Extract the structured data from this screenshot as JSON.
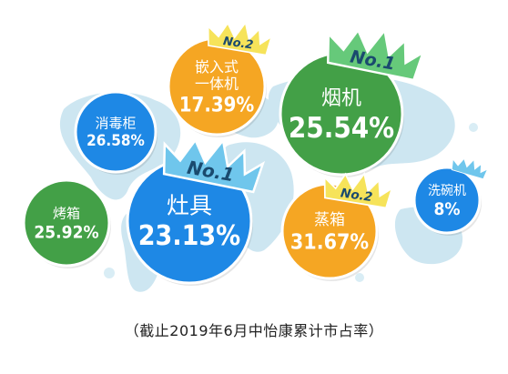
{
  "chart_data": {
    "type": "bubble",
    "title": "",
    "items": [
      {
        "name": "嵌入式\n一体机",
        "value": 17.39,
        "label": "17.39%",
        "color": "#f5a623",
        "badge": "No.2"
      },
      {
        "name": "消毒柜",
        "value": 26.58,
        "label": "26.58%",
        "color": "#1e88e5",
        "badge": ""
      },
      {
        "name": "烟机",
        "value": 25.54,
        "label": "25.54%",
        "color": "#43a047",
        "badge": "No.1"
      },
      {
        "name": "灶具",
        "value": 23.13,
        "label": "23.13%",
        "color": "#1e88e5",
        "badge": "No.1"
      },
      {
        "name": "烤箱",
        "value": 25.92,
        "label": "25.92%",
        "color": "#43a047",
        "badge": ""
      },
      {
        "name": "蒸箱",
        "value": 31.67,
        "label": "31.67%",
        "color": "#f5a623",
        "badge": "No.2"
      },
      {
        "name": "洗碗机",
        "value": 8,
        "label": "8%",
        "color": "#1e88e5",
        "badge": ""
      }
    ]
  },
  "caption": "（截止2019年6月中怡康累计市占率）",
  "colors": {
    "blue": "#1e88e5",
    "green": "#43a047",
    "orange": "#f5a623",
    "crown_green": "#66c97a",
    "crown_blue": "#6fc6ec",
    "crown_yellow": "#f6e35a"
  }
}
